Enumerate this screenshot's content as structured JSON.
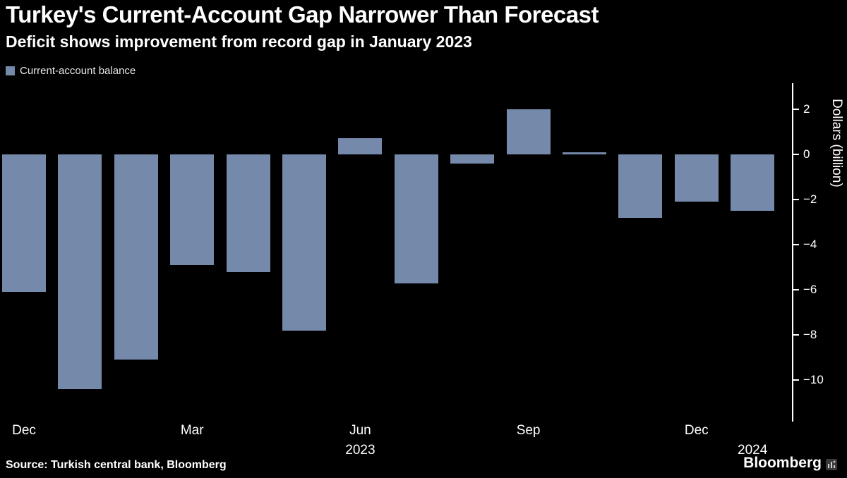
{
  "header": {
    "title": "Turkey's Current-Account Gap Narrower Than Forecast",
    "subtitle": "Deficit shows improvement from record gap in January 2023"
  },
  "legend": {
    "label": "Current-account balance",
    "color": "#7589ab"
  },
  "chart_data": {
    "type": "bar",
    "title": "Turkey's Current-Account Gap Narrower Than Forecast",
    "subtitle": "Deficit shows improvement from record gap in January 2023",
    "legend_label": "Current-account balance",
    "ylabel": "Dollars (billion)",
    "bar_color": "#7589ab",
    "x": [
      "Dec 2022",
      "Jan 2023",
      "Feb 2023",
      "Mar 2023",
      "Apr 2023",
      "May 2023",
      "Jun 2023",
      "Jul 2023",
      "Aug 2023",
      "Sep 2023",
      "Oct 2023",
      "Nov 2023",
      "Dec 2023",
      "Jan 2024"
    ],
    "values": [
      -6.1,
      -10.4,
      -9.1,
      -4.9,
      -5.2,
      -7.8,
      0.7,
      -5.7,
      -0.4,
      2.0,
      0.1,
      -2.8,
      -2.1,
      -2.5
    ],
    "ylim": [
      -11.8,
      3.15
    ],
    "yticks": [
      2,
      0,
      -2,
      -4,
      -6,
      -8,
      -10
    ],
    "grid": false,
    "legend_position": "top-left",
    "x_axis_ticks": [
      {
        "index": 0,
        "label": "Dec"
      },
      {
        "index": 3,
        "label": "Mar"
      },
      {
        "index": 6,
        "label": "Jun"
      },
      {
        "index": 9,
        "label": "Sep"
      },
      {
        "index": 12,
        "label": "Dec"
      }
    ],
    "year_labels": [
      {
        "index": 6,
        "label": "2023"
      },
      {
        "index": 13,
        "label": "2024"
      }
    ]
  },
  "footer": {
    "source": "Source: Turkish central bank, Bloomberg",
    "brand": "Bloomberg"
  }
}
